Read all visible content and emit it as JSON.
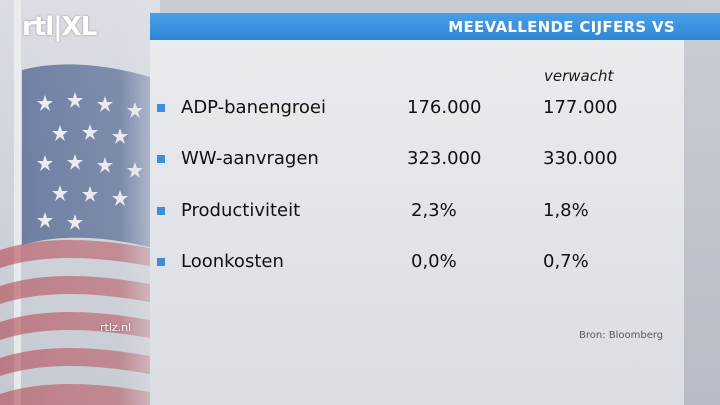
{
  "logo": {
    "text": "rtl|XL",
    "icon": "rtl-z-logo-icon"
  },
  "title": "MEEVALLENDE CIJFERS VS",
  "column_header": "verwacht",
  "rows": [
    {
      "label": "ADP-banengroei",
      "actual": "176.000",
      "expected": "177.000"
    },
    {
      "label": "WW-aanvragen",
      "actual": "323.000",
      "expected": "330.000"
    },
    {
      "label": "Productiviteit",
      "actual": "2,3%",
      "expected": "1,8%"
    },
    {
      "label": "Loonkosten",
      "actual": "0,0%",
      "expected": "0,7%"
    }
  ],
  "website": "rtlz.nl",
  "source": "Bron: Bloomberg",
  "colors": {
    "accent": "#2f86d6",
    "bullet": "#3d8fdc",
    "panel": "#e3e5e9"
  }
}
